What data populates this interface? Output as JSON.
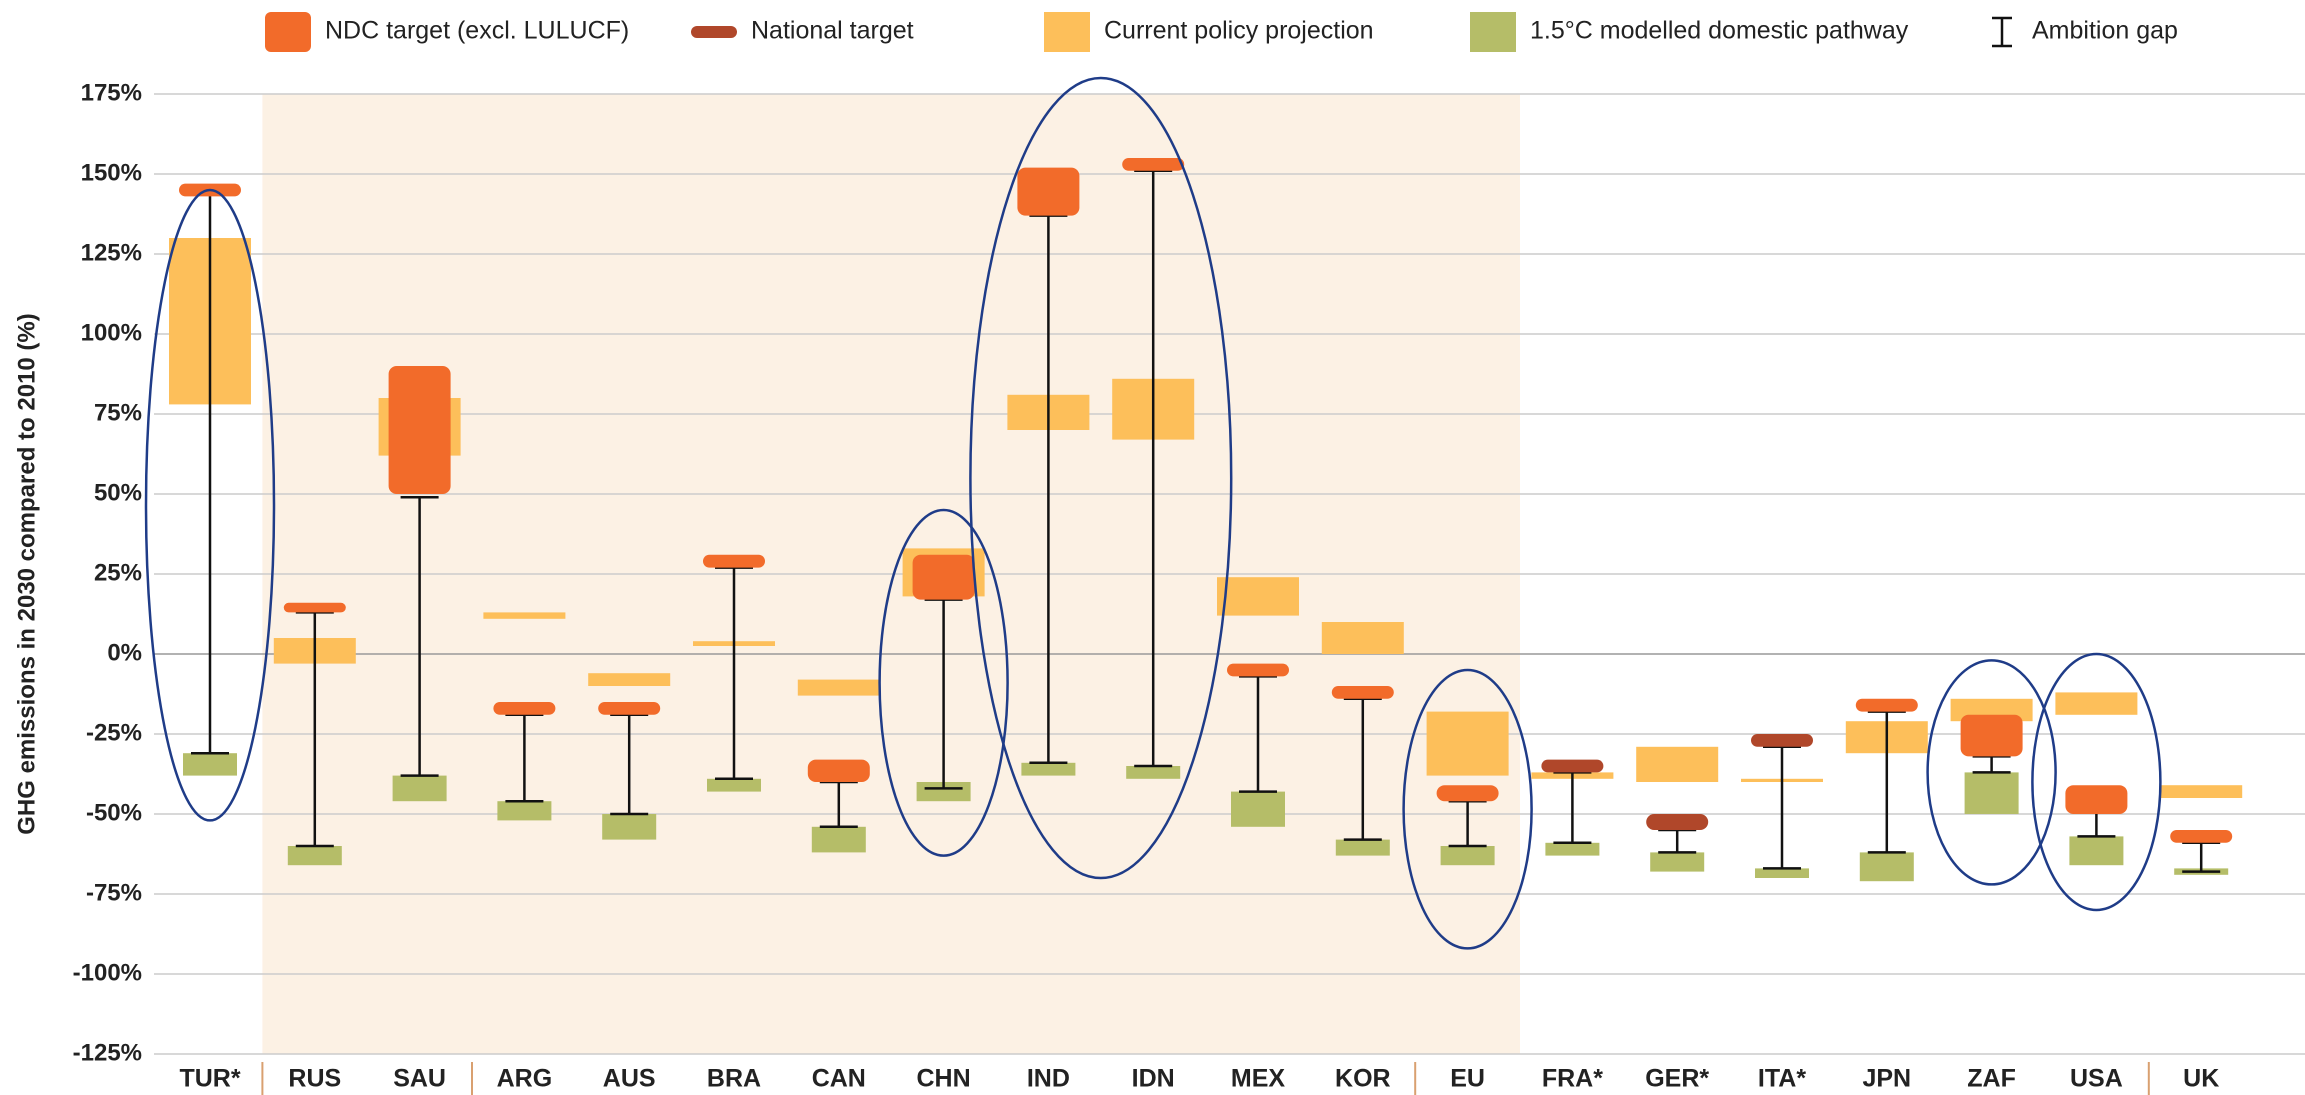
{
  "chart_data": {
    "type": "range",
    "y_axis_label": "GHG emissions in 2030 compared to 2010 (%)",
    "categories": [
      "TUR*",
      "RUS",
      "SAU",
      "ARG",
      "AUS",
      "BRA",
      "CAN",
      "CHN",
      "IND",
      "IDN",
      "MEX",
      "KOR",
      "EU",
      "FRA*",
      "GER*",
      "ITA*",
      "JPN",
      "ZAF",
      "USA",
      "UK"
    ],
    "ylim": [
      -125,
      175
    ],
    "yticks": [
      {
        "value": -125,
        "label": "-125%"
      },
      {
        "value": -100,
        "label": "-100%"
      },
      {
        "value": -75,
        "label": "-75%"
      },
      {
        "value": -50,
        "label": "-50%"
      },
      {
        "value": -25,
        "label": "-25%"
      },
      {
        "value": 0,
        "label": "0%"
      },
      {
        "value": 25,
        "label": "25%"
      },
      {
        "value": 50,
        "label": "50%"
      },
      {
        "value": 75,
        "label": "75%"
      },
      {
        "value": 100,
        "label": "100%"
      },
      {
        "value": 125,
        "label": "125%"
      },
      {
        "value": 150,
        "label": "150%"
      },
      {
        "value": 175,
        "label": "175%"
      }
    ],
    "grid": true,
    "legend": "top",
    "series": [
      {
        "name": "Current policy projection",
        "color": "#fdbf5a",
        "values": [
          [
            78,
            130
          ],
          [
            -3,
            5
          ],
          [
            62,
            80
          ],
          [
            11,
            13
          ],
          [
            -10,
            -6
          ],
          [
            2.5,
            4
          ],
          [
            -13,
            -8
          ],
          [
            18,
            33
          ],
          [
            70,
            81
          ],
          [
            67,
            86
          ],
          [
            12,
            24
          ],
          [
            0,
            10
          ],
          [
            -38,
            -18
          ],
          [
            -39,
            -37
          ],
          [
            -40,
            -29
          ],
          [
            -40,
            -39
          ],
          [
            -31,
            -21
          ],
          [
            -21,
            -14
          ],
          [
            -19,
            -12
          ],
          [
            -45,
            -41
          ]
        ]
      },
      {
        "name": "1.5°C modelled domestic pathway",
        "color": "#b5bd68",
        "values": [
          [
            -38,
            -31
          ],
          [
            -66,
            -60
          ],
          [
            -46,
            -38
          ],
          [
            -52,
            -46
          ],
          [
            -58,
            -50
          ],
          [
            -43,
            -39
          ],
          [
            -62,
            -54
          ],
          [
            -46,
            -40
          ],
          [
            -38,
            -34
          ],
          [
            -39,
            -35
          ],
          [
            -54,
            -43
          ],
          [
            -63,
            -58
          ],
          [
            -66,
            -60
          ],
          [
            -63,
            -59
          ],
          [
            -68,
            -62
          ],
          [
            -70,
            -67
          ],
          [
            -71,
            -62
          ],
          [
            -50,
            -37
          ],
          [
            -66,
            -57
          ],
          [
            -69,
            -67
          ]
        ]
      },
      {
        "name": "Ambition gap",
        "color": "#111111",
        "values": [
          [
            -31,
            145
          ],
          [
            -60,
            13
          ],
          [
            -38,
            49
          ],
          [
            -46,
            -19
          ],
          [
            -50,
            -19
          ],
          [
            -39,
            27
          ],
          [
            -54,
            -40
          ],
          [
            -42,
            17
          ],
          [
            -34,
            137
          ],
          [
            -35,
            151
          ],
          [
            -43,
            -7
          ],
          [
            -58,
            -14
          ],
          [
            -60,
            -46
          ],
          [
            -59,
            -37
          ],
          [
            -62,
            -55
          ],
          [
            -67,
            -29
          ],
          [
            -62,
            -18
          ],
          [
            -37,
            -32
          ],
          [
            -57,
            -49
          ],
          [
            -68,
            -59
          ]
        ]
      },
      {
        "name": "NDC target (excl. LULUCF)",
        "color": "#f26b2a",
        "values": [
          [
            143,
            147
          ],
          [
            13,
            16
          ],
          [
            50,
            90
          ],
          [
            -19,
            -15
          ],
          [
            -19,
            -15
          ],
          [
            27,
            31
          ],
          [
            -40,
            -33
          ],
          [
            17,
            31
          ],
          [
            137,
            152
          ],
          [
            151,
            155
          ],
          [
            -7,
            -3
          ],
          [
            -14,
            -10
          ],
          [
            -46,
            -41
          ],
          null,
          null,
          null,
          [
            -18,
            -14
          ],
          [
            -32,
            -19
          ],
          [
            -50,
            -41
          ],
          [
            -59,
            -55
          ]
        ]
      },
      {
        "name": "National target",
        "color": "#b0472a",
        "values": [
          null,
          null,
          null,
          null,
          null,
          null,
          null,
          null,
          null,
          null,
          null,
          null,
          null,
          [
            -37,
            -33
          ],
          [
            -55,
            -50
          ],
          [
            -29,
            -25
          ],
          null,
          null,
          null,
          null
        ]
      }
    ]
  }
}
